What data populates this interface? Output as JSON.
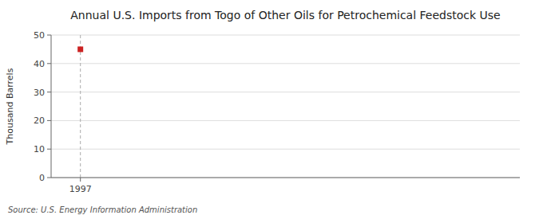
{
  "chart_data": {
    "type": "scatter",
    "title": "Annual U.S. Imports from Togo of Other Oils for Petrochemical Feedstock Use",
    "y_label": "Thousand Barrels",
    "source": "Source: U.S. Energy Information Administration",
    "x": [
      1997
    ],
    "values": [
      45
    ],
    "color": "#cc2222",
    "marker": "square",
    "xlim": [
      1996.4,
      2006
    ],
    "ylim": [
      0,
      50
    ],
    "xticks": [
      1997
    ],
    "yticks": [
      0,
      10,
      20,
      30,
      40,
      50
    ],
    "grid": true
  }
}
